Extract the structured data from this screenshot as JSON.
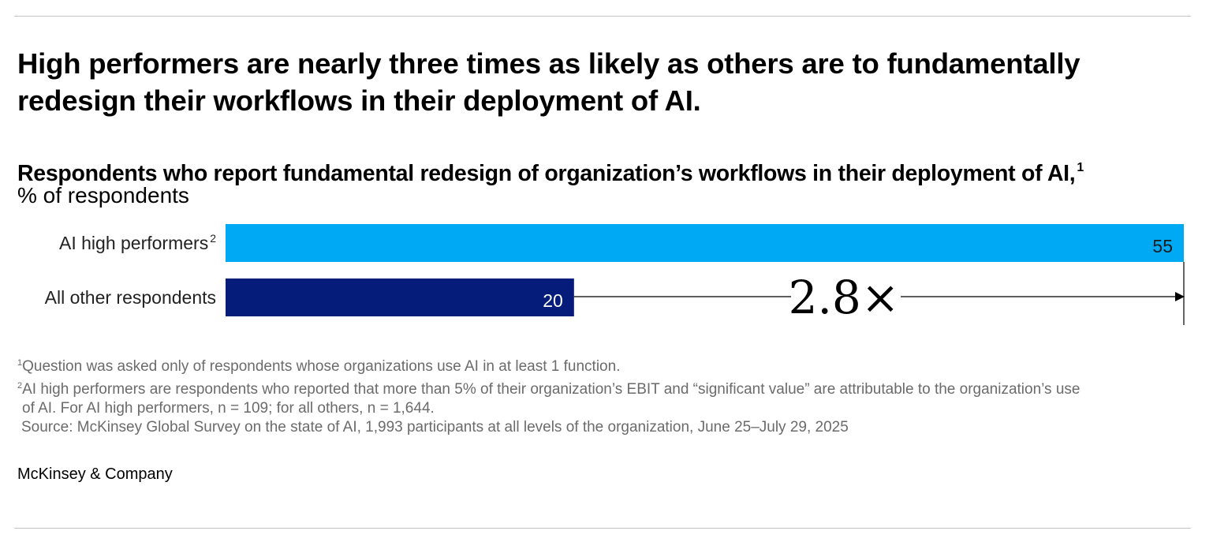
{
  "headline": "High performers are nearly three times as likely as others are to fundamentally redesign their workflows in their deployment of AI.",
  "chart_data": {
    "type": "bar",
    "orientation": "horizontal",
    "title": "Respondents who report fundamental redesign of organization’s workflows in their deployment of AI,",
    "title_footnote": "1",
    "unit_label": "% of respondents",
    "categories": [
      "AI high performers",
      "All other respondents"
    ],
    "category_footnotes": [
      "2",
      ""
    ],
    "values": [
      55,
      20
    ],
    "value_labels": [
      "55",
      "20"
    ],
    "colors": [
      "#00a9f4",
      "#051c7a"
    ],
    "xlim": [
      0,
      55
    ],
    "grid": false,
    "annotation": {
      "text": "2.8×",
      "from_value": 20,
      "to_value": 55
    }
  },
  "footnotes": [
    {
      "marker": "1",
      "text": "Question was asked only of respondents whose organizations use AI in at least 1 function."
    },
    {
      "marker": "2",
      "text": "AI high performers are respondents who reported that more than 5% of their organization’s EBIT and “significant value” are attributable to the organization’s use",
      "continuation": "of AI. For AI high performers, n = 109; for all others, n = 1,644."
    }
  ],
  "source": "Source: McKinsey Global Survey on the state of AI, 1,993 participants at all levels of the organization, June 25–July 29, 2025",
  "brand": "McKinsey & Company"
}
